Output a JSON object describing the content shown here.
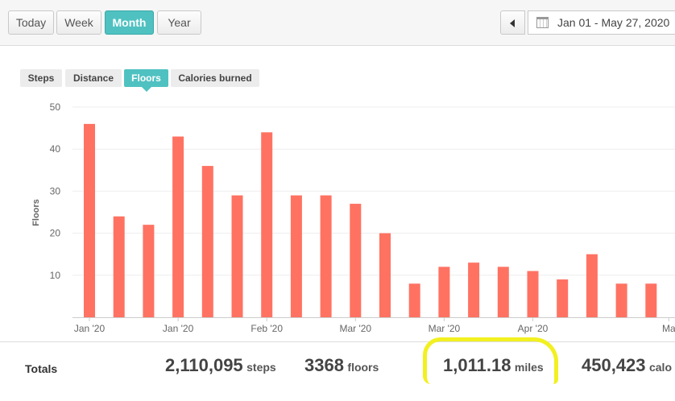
{
  "toolbar": {
    "buttons": [
      {
        "label": "Today",
        "active": false
      },
      {
        "label": "Week",
        "active": false
      },
      {
        "label": "Month",
        "active": true
      },
      {
        "label": "Year",
        "active": false
      }
    ],
    "date_range": "Jan 01 - May 27, 2020"
  },
  "metric_tabs": [
    {
      "label": "Steps",
      "active": false
    },
    {
      "label": "Distance",
      "active": false
    },
    {
      "label": "Floors",
      "active": true
    },
    {
      "label": "Calories burned",
      "active": false
    }
  ],
  "chart_data": {
    "type": "bar",
    "ylabel": "Floors",
    "ylim": [
      0,
      50
    ],
    "yticks": [
      10,
      20,
      30,
      40,
      50
    ],
    "bar_color": "#ff7262",
    "values": [
      46,
      24,
      22,
      43,
      36,
      29,
      44,
      29,
      29,
      27,
      20,
      8,
      12,
      13,
      12,
      11,
      9,
      15,
      8,
      8
    ],
    "x_tick_labels": [
      "Jan '20",
      "Jan '20",
      "Feb '20",
      "Mar '20",
      "Mar '20",
      "Apr '20",
      "Ma"
    ],
    "x_tick_bar_index": [
      0,
      3,
      6,
      9,
      12,
      15,
      19.6
    ]
  },
  "totals": {
    "label": "Totals",
    "items": [
      {
        "value": "2,110,095",
        "unit": "steps"
      },
      {
        "value": "3368",
        "unit": "floors"
      },
      {
        "value": "1,011.18",
        "unit": "miles"
      },
      {
        "value": "450,423",
        "unit": "calo"
      }
    ]
  },
  "colors": {
    "accent": "#4fc1c1",
    "bar": "#ff7262",
    "highlight": "#f2f020"
  }
}
